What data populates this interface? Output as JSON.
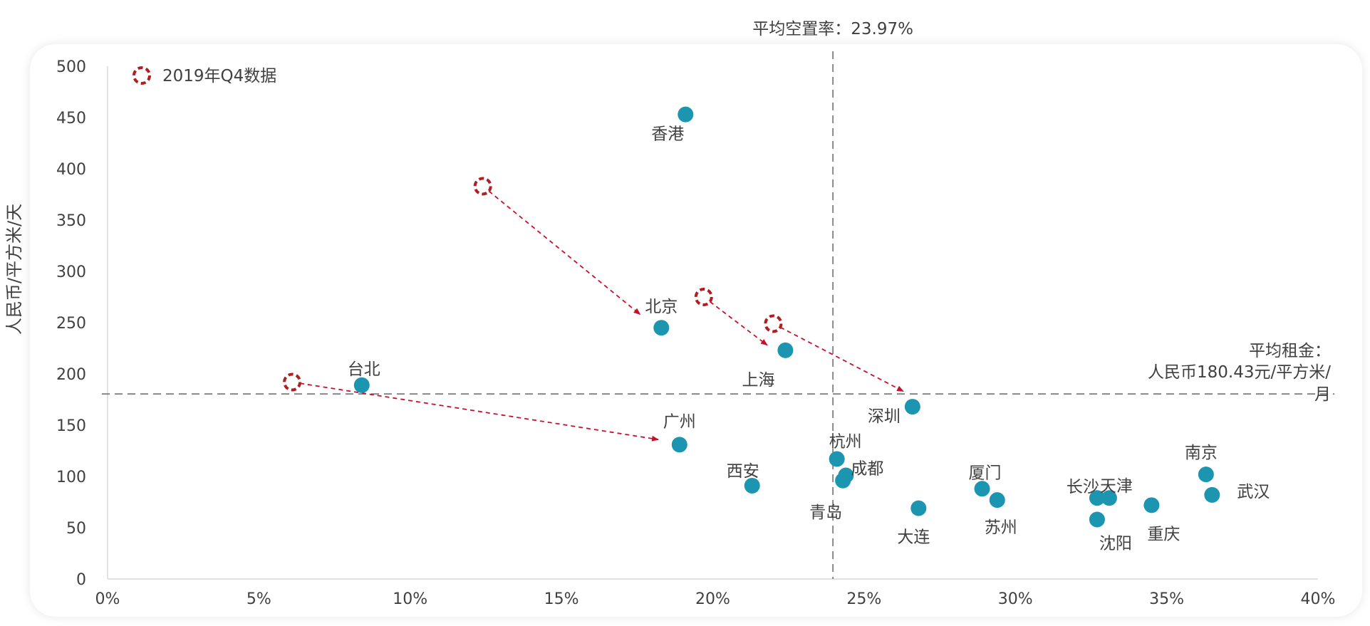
{
  "chart_data": {
    "type": "scatter",
    "ylabel": "人民币/平方米/天",
    "xlabel": "",
    "xlim": [
      0,
      40
    ],
    "ylim": [
      0,
      500
    ],
    "xticks": [
      0,
      5,
      10,
      15,
      20,
      25,
      30,
      35,
      40
    ],
    "xtick_labels": [
      "0%",
      "5%",
      "10%",
      "15%",
      "20%",
      "25%",
      "30%",
      "35%",
      "40%"
    ],
    "yticks": [
      0,
      50,
      100,
      150,
      200,
      250,
      300,
      350,
      400,
      450,
      500
    ],
    "ytick_labels": [
      "0",
      "50",
      "100",
      "150",
      "200",
      "250",
      "300",
      "350",
      "400",
      "450",
      "500"
    ],
    "grid": false,
    "legend": {
      "position": "top-left",
      "entries": [
        {
          "name": "2019年Q4数据",
          "style": "dashed-circle",
          "color": "#B01E22"
        }
      ]
    },
    "series": [
      {
        "color": "#1B95B0",
        "points": [
          {
            "label": "香港",
            "x": 19.1,
            "y": 453
          },
          {
            "label": "北京",
            "x": 18.3,
            "y": 245
          },
          {
            "label": "上海",
            "x": 22.4,
            "y": 223
          },
          {
            "label": "台北",
            "x": 8.4,
            "y": 189
          },
          {
            "label": "深圳",
            "x": 26.6,
            "y": 168
          },
          {
            "label": "广州",
            "x": 18.9,
            "y": 131
          },
          {
            "label": "西安",
            "x": 21.3,
            "y": 91
          },
          {
            "label": "杭州",
            "x": 24.1,
            "y": 117
          },
          {
            "label": "成都",
            "x": 24.4,
            "y": 101
          },
          {
            "label": "青岛",
            "x": 24.3,
            "y": 96
          },
          {
            "label": "大连",
            "x": 26.8,
            "y": 69
          },
          {
            "label": "厦门",
            "x": 28.9,
            "y": 88
          },
          {
            "label": "苏州",
            "x": 29.4,
            "y": 77
          },
          {
            "label": "长沙",
            "x": 32.7,
            "y": 79
          },
          {
            "label": "天津",
            "x": 33.1,
            "y": 79
          },
          {
            "label": "沈阳",
            "x": 32.7,
            "y": 58
          },
          {
            "label": "重庆",
            "x": 34.5,
            "y": 72
          },
          {
            "label": "南京",
            "x": 36.3,
            "y": 102
          },
          {
            "label": "武汉",
            "x": 36.5,
            "y": 82
          }
        ]
      },
      {
        "name": "2019年Q4数据",
        "color": "#B01E22",
        "style": "dashed-circle",
        "points": [
          {
            "x": 12.4,
            "y": 383
          },
          {
            "x": 19.7,
            "y": 275
          },
          {
            "x": 22.0,
            "y": 249
          },
          {
            "x": 6.1,
            "y": 192
          }
        ]
      }
    ],
    "arrows": [
      {
        "from": [
          12.4,
          383
        ],
        "to": [
          17.6,
          258
        ]
      },
      {
        "from": [
          19.7,
          275
        ],
        "to": [
          21.8,
          228
        ]
      },
      {
        "from": [
          22.0,
          249
        ],
        "to": [
          26.3,
          183
        ]
      },
      {
        "from": [
          6.1,
          192
        ],
        "to": [
          18.2,
          136
        ]
      }
    ],
    "reference_lines": {
      "vertical": {
        "x": 23.97,
        "label": "平均空置率：23.97%"
      },
      "horizontal": {
        "y": 180.43,
        "label_lines": [
          "平均租金：",
          "人民币180.43元/平方米/",
          "月"
        ]
      }
    },
    "colors": {
      "point": "#1B95B0",
      "q4": "#B01E22",
      "arrow": "#C8102E",
      "axis": "#D9D9D9",
      "refline": "#7F7F7F"
    }
  }
}
